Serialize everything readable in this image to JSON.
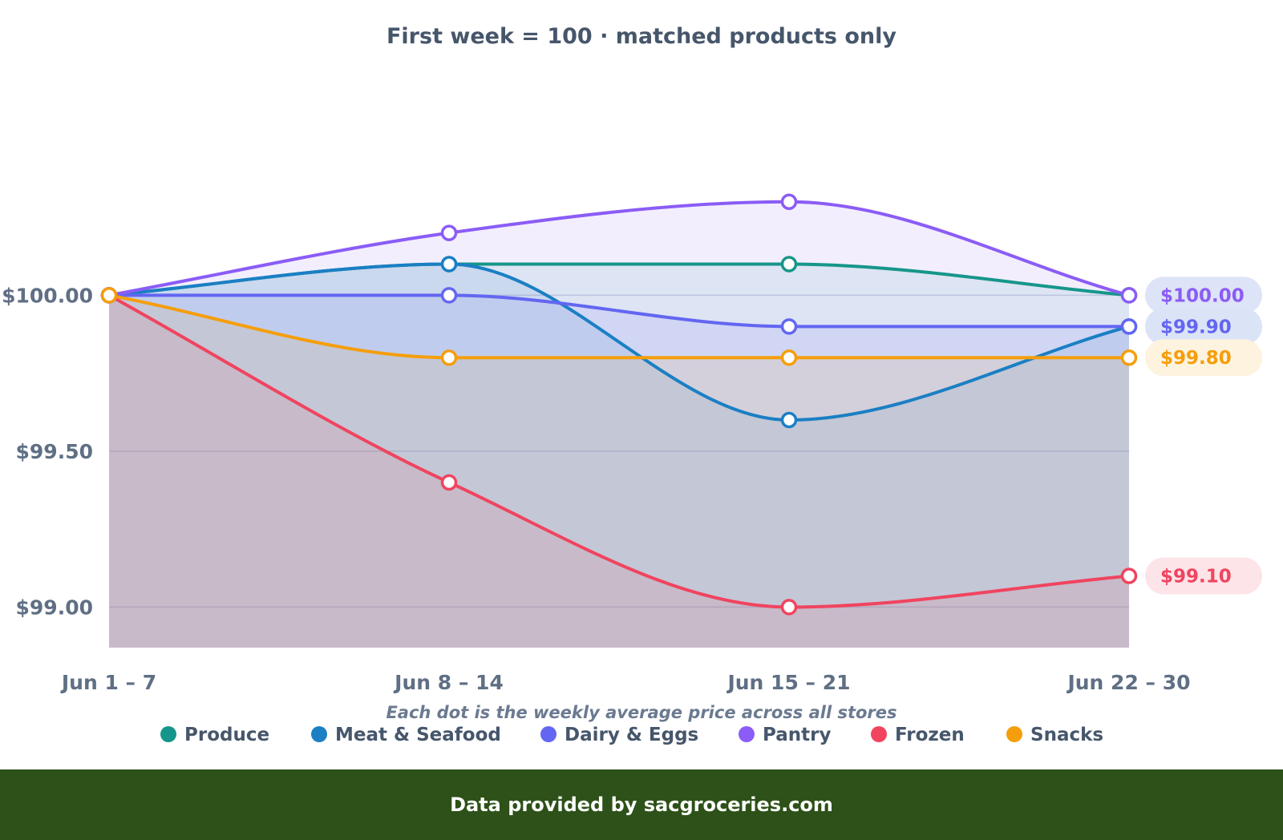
{
  "chart_data": {
    "type": "line",
    "title": "First week = 100 · matched products only",
    "categories": [
      "Jun 1 – 7",
      "Jun 8 – 14",
      "Jun 15 – 21",
      "Jun 22 – 30"
    ],
    "ylim": [
      98.87,
      100.69
    ],
    "yticks": [
      {
        "value": 100.0,
        "label": "$100.00"
      },
      {
        "value": 99.5,
        "label": "$99.50"
      },
      {
        "value": 99.0,
        "label": "$99.00"
      }
    ],
    "grid": true,
    "legend_position": "bottom",
    "caption": "Each dot is the weekly average price across all stores",
    "series": [
      {
        "name": "Produce",
        "color": "#16968a",
        "values": [
          100.0,
          100.1,
          100.1,
          100.0
        ]
      },
      {
        "name": "Meat & Seafood",
        "color": "#1b7fc4",
        "values": [
          100.0,
          100.1,
          99.6,
          99.9
        ]
      },
      {
        "name": "Dairy & Eggs",
        "color": "#6366f1",
        "values": [
          100.0,
          100.0,
          99.9,
          99.9
        ]
      },
      {
        "name": "Pantry",
        "color": "#8b5cf6",
        "values": [
          100.0,
          100.2,
          100.3,
          100.0
        ]
      },
      {
        "name": "Frozen",
        "color": "#f0445f",
        "values": [
          100.0,
          99.4,
          99.0,
          99.1
        ]
      },
      {
        "name": "Snacks",
        "color": "#f59e0b",
        "values": [
          100.0,
          99.8,
          99.8,
          99.8
        ]
      }
    ],
    "end_labels": [
      {
        "text": "$100.00",
        "value": 100.0,
        "color": "#8b5cf6",
        "bg": "#dde4f7"
      },
      {
        "text": "$99.90",
        "value": 99.9,
        "color": "#6366f1",
        "bg": "#dbe3f7"
      },
      {
        "text": "$99.80",
        "value": 99.8,
        "color": "#f59e0b",
        "bg": "#fdf3df"
      },
      {
        "text": "$99.10",
        "value": 99.1,
        "color": "#f0445f",
        "bg": "#fde4e8"
      }
    ]
  },
  "footer": {
    "text": "Data provided by sacgroceries.com"
  }
}
